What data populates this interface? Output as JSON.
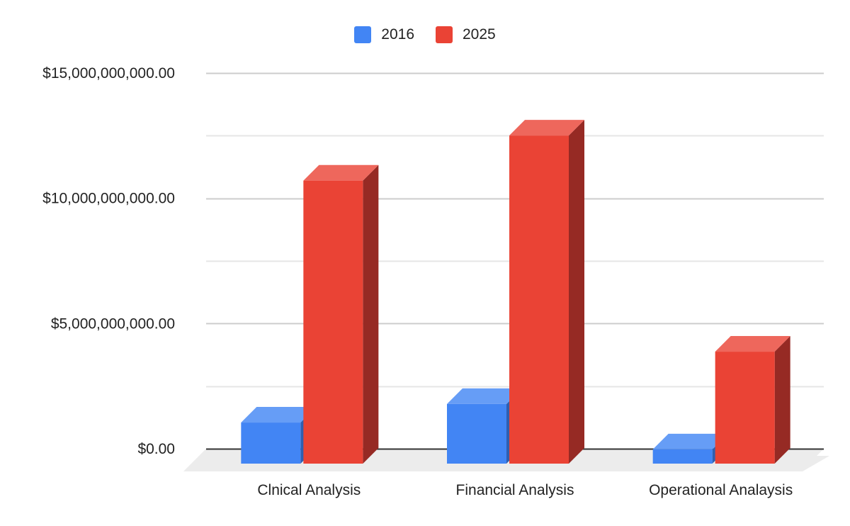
{
  "chart_data": {
    "type": "bar",
    "style": "3d-column",
    "title": "",
    "xlabel": "",
    "ylabel": "",
    "categories": [
      "Clnical Analysis",
      "Financial Analysis",
      "Operational Analaysis"
    ],
    "series": [
      {
        "name": "2016",
        "color": "#4285f4",
        "top_color": "#669df6",
        "side_color": "#2f5fb0",
        "values": [
          1640000000,
          2380000000,
          570000000
        ]
      },
      {
        "name": "2025",
        "color": "#ea4335",
        "top_color": "#ee675c",
        "side_color": "#962a24",
        "values": [
          11300000000,
          13100000000,
          4470000000
        ]
      }
    ],
    "ylim": [
      0,
      15000000000
    ],
    "yticks": [
      0,
      5000000000,
      10000000000,
      15000000000
    ],
    "ytick_labels": [
      "$0.00",
      "$5,000,000,000.00",
      "$10,000,000,000.00",
      "$15,000,000,000.00"
    ],
    "minor_gridlines": [
      2500000000,
      7500000000,
      12500000000
    ],
    "grid": true,
    "legend_position": "top"
  },
  "legend": {
    "items": [
      {
        "label": "2016",
        "color": "#4285f4"
      },
      {
        "label": "2025",
        "color": "#ea4335"
      }
    ]
  }
}
